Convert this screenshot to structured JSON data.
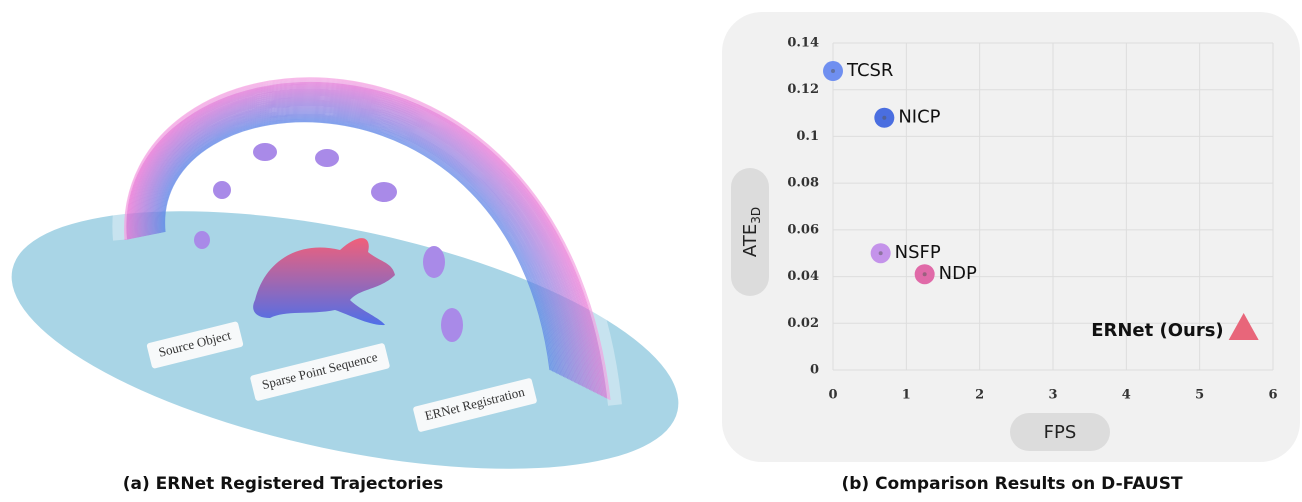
{
  "illustration": {
    "caption": "(a) ERNet Registered Trajectories",
    "labels": [
      "Source Object",
      "Sparse Point Sequence",
      "ERNet Registration"
    ]
  },
  "chart_data": {
    "type": "scatter",
    "title": "(b) Comparison Results on D-FAUST",
    "xlabel": "FPS",
    "ylabel": {
      "text": "ATE",
      "subscript": "3D"
    },
    "xlim": [
      0,
      6
    ],
    "ylim": [
      0,
      0.14
    ],
    "xticks": [
      0,
      1,
      2,
      3,
      4,
      5,
      6
    ],
    "yticks": [
      0,
      0.02,
      0.04,
      0.06,
      0.08,
      0.1,
      0.12,
      0.14
    ],
    "grid": true,
    "series": [
      {
        "name": "TCSR",
        "color": "#6f8ff0",
        "marker": "circle",
        "x": [
          0
        ],
        "values": [
          0.128
        ]
      },
      {
        "name": "NICP",
        "color": "#4a6ee0",
        "marker": "circle",
        "x": [
          0.7
        ],
        "values": [
          0.108
        ]
      },
      {
        "name": "NSFP",
        "color": "#c493ea",
        "marker": "circle",
        "x": [
          0.65
        ],
        "values": [
          0.05
        ]
      },
      {
        "name": "NDP",
        "color": "#e06aa8",
        "marker": "circle",
        "x": [
          1.25
        ],
        "values": [
          0.041
        ]
      },
      {
        "name": "ERNet (Ours)",
        "color": "#e8667a",
        "marker": "triangle",
        "x": [
          5.6
        ],
        "values": [
          0.018
        ]
      }
    ]
  }
}
